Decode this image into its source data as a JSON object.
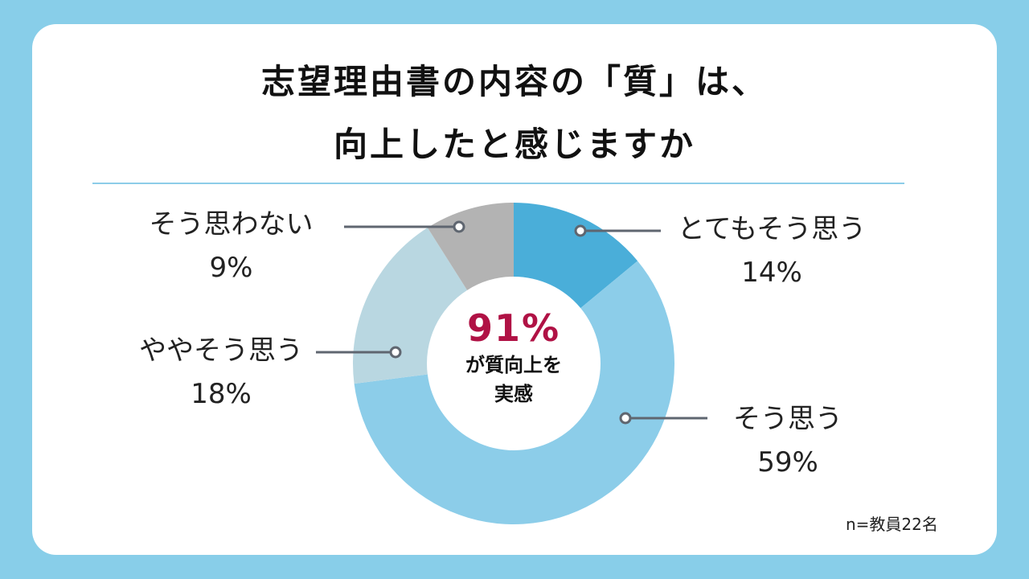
{
  "chart_data": {
    "type": "pie",
    "donut": true,
    "title": "志望理由書の内容の「質」は、向上したと感じますか",
    "title_lines": [
      "志望理由書の内容の「質」は、",
      "向上したと感じますか"
    ],
    "categories": [
      "とてもそう思う",
      "そう思う",
      "ややそう思う",
      "そう思わない"
    ],
    "values": [
      14,
      59,
      18,
      9
    ],
    "value_labels": [
      "14%",
      "59%",
      "18%",
      "9%"
    ],
    "colors": [
      "#4aaed9",
      "#8ccde9",
      "#b9d7e1",
      "#b3b3b3"
    ],
    "center_value": "91%",
    "center_text_lines": [
      "が質向上を",
      "実感"
    ],
    "note": "n=教員22名"
  }
}
